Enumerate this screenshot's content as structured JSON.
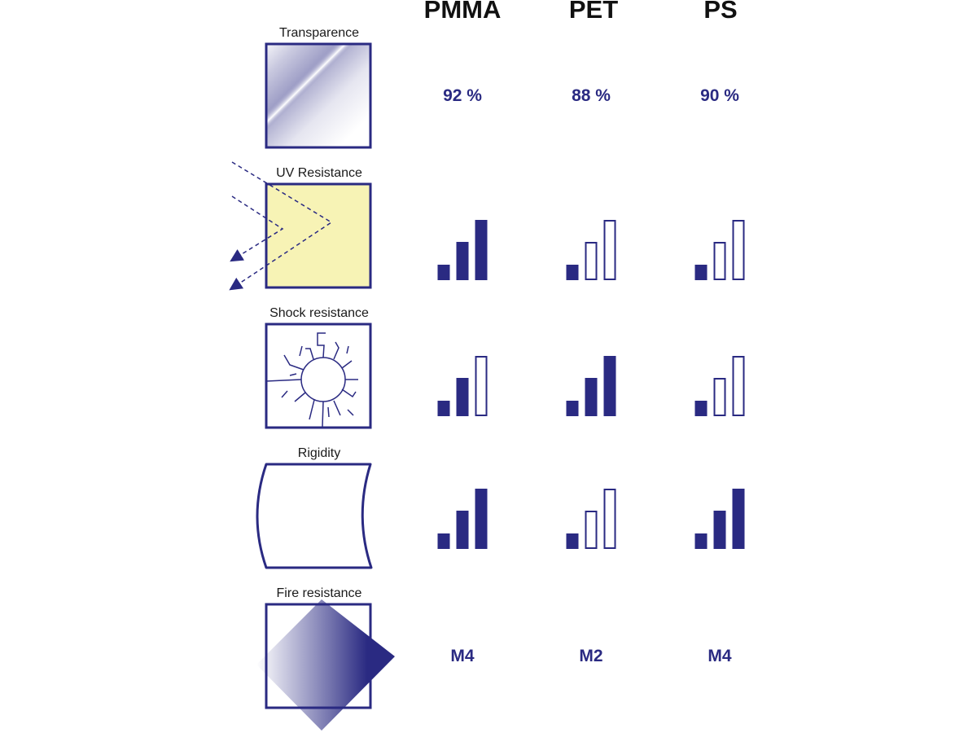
{
  "colors": {
    "primary": "#2a2a82",
    "uv_fill": "#f7f3b5",
    "text": "#1a1a1a"
  },
  "columns": [
    "PMMA",
    "PET",
    "PS"
  ],
  "rows": [
    {
      "label": "Transparence",
      "icon": "transparency-icon",
      "kind": "text",
      "values": [
        "92 %",
        "88 %",
        "90 %"
      ]
    },
    {
      "label": "UV Resistance",
      "icon": "uv-resistance-icon",
      "kind": "bars",
      "levels": [
        3,
        1,
        1
      ]
    },
    {
      "label": "Shock resistance",
      "icon": "shock-resistance-icon",
      "kind": "bars",
      "levels": [
        2,
        3,
        1
      ]
    },
    {
      "label": "Rigidity",
      "icon": "rigidity-icon",
      "kind": "bars",
      "levels": [
        3,
        1,
        3
      ]
    },
    {
      "label": "Fire resistance",
      "icon": "fire-resistance-icon",
      "kind": "text",
      "values": [
        "M4",
        "M2",
        "M4"
      ]
    }
  ]
}
